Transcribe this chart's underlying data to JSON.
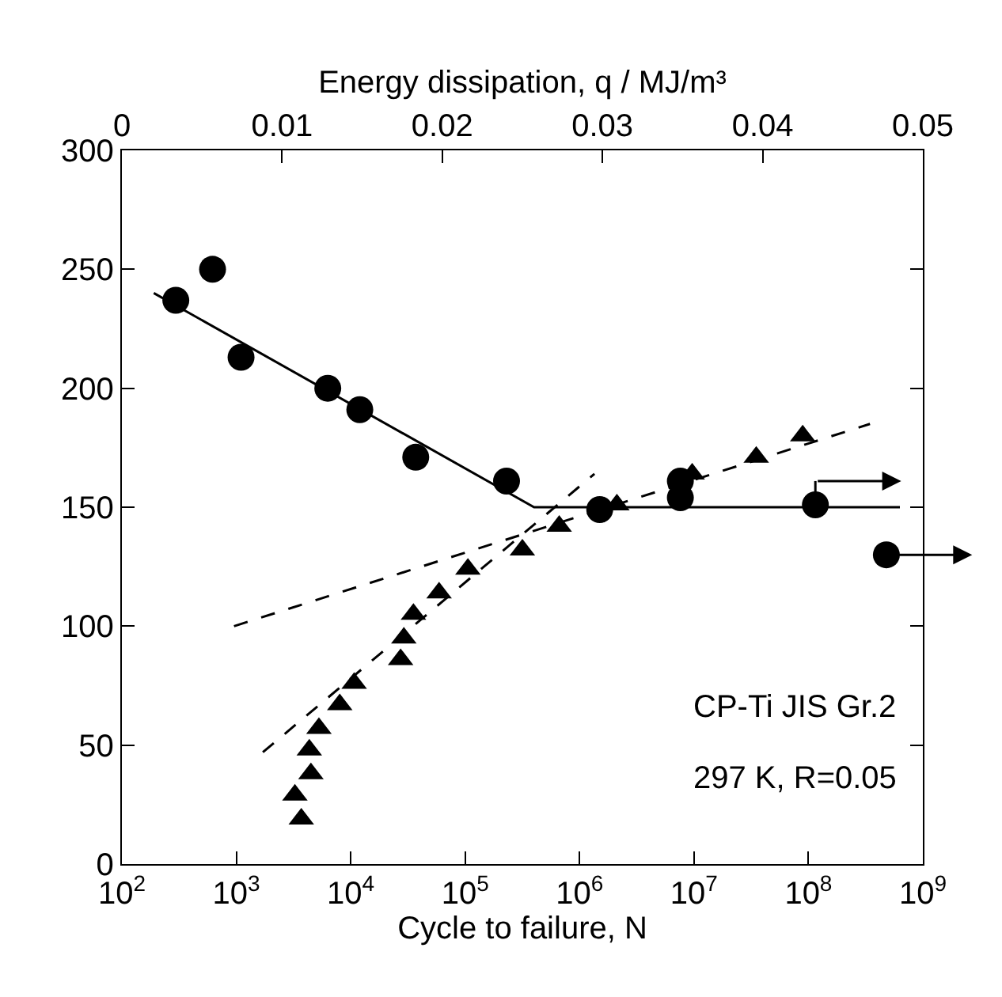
{
  "chart_data": {
    "type": "scatter",
    "xlabel": "Cycle to failure, N",
    "x2label": "Energy dissipation, q / MJ/m³",
    "log": "x",
    "legend": false,
    "xlim": [
      100,
      1000000000
    ],
    "xticks": [
      {
        "value": 100,
        "label": "10$^{2}$"
      },
      {
        "value": 1000,
        "label": "10$^{3}$"
      },
      {
        "value": 10000,
        "label": "10$^{4}$"
      },
      {
        "value": 100000,
        "label": "10$^{5}$"
      },
      {
        "value": 1000000,
        "label": "10$^{6}$"
      },
      {
        "value": 10000000,
        "label": "10$^{7}$"
      },
      {
        "value": 100000000,
        "label": "10$^{8}$"
      },
      {
        "value": 1000000000,
        "label": "10$^{9}$"
      }
    ],
    "x2lim": [
      0,
      0.05
    ],
    "x2ticks": [
      0,
      0.01,
      0.02,
      0.03,
      0.04,
      0.05
    ],
    "ylim": [
      0,
      300
    ],
    "yticks": [
      0,
      50,
      100,
      150,
      200,
      250,
      300
    ],
    "series": [
      {
        "marker": "circle",
        "color": "#000000",
        "x": [
          296,
          620,
          1100,
          6300,
          12000,
          37000,
          230000,
          1500000,
          7600000,
          7600000,
          115000000,
          480000000
        ],
        "values": [
          237,
          250,
          213,
          200,
          191,
          171,
          161,
          149,
          161,
          154,
          151,
          130
        ]
      },
      {
        "type": "line",
        "line_style": "solid",
        "color": "#000000",
        "x": [
          190,
          400000,
          630000000
        ],
        "values": [
          240,
          150,
          150
        ]
      },
      {
        "marker": "triangle",
        "axis": "x2",
        "color": "#000000",
        "x": [
          0.0112,
          0.0108,
          0.0118,
          0.0117,
          0.0123,
          0.0136,
          0.0145,
          0.0174,
          0.0176,
          0.0182,
          0.0198,
          0.0216,
          0.025,
          0.0273,
          0.0309,
          0.0356,
          0.0396,
          0.0425
        ],
        "values": [
          19,
          29,
          38,
          48,
          57,
          67,
          76,
          86,
          95,
          105,
          114,
          124,
          132,
          142,
          151,
          164,
          171,
          180
        ]
      },
      {
        "type": "line",
        "line_style": "dashed",
        "axis": "x2",
        "color": "#000000",
        "x": [
          0.0088,
          0.0295
        ],
        "values": [
          47,
          164
        ]
      },
      {
        "type": "line",
        "line_style": "dashed",
        "axis": "x2",
        "color": "#000000",
        "x": [
          0.007,
          0.0467
        ],
        "values": [
          100,
          185
        ]
      }
    ],
    "annotations": [
      "CP-Ti JIS Gr.2",
      "297 K, R=0.05"
    ]
  }
}
